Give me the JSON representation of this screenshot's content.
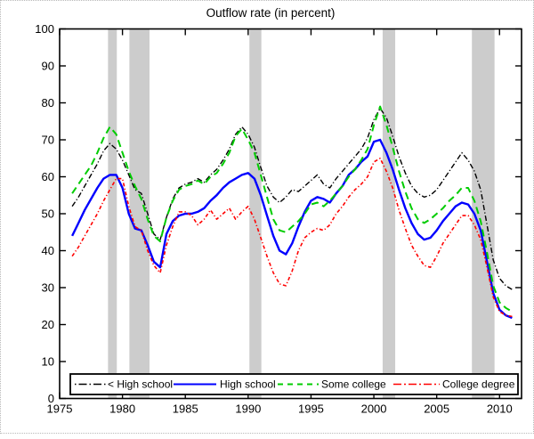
{
  "figure": {
    "background": "#ffffff",
    "border_color": "#b8b8b8"
  },
  "chart_data": {
    "type": "line",
    "title": "Outflow rate (in percent)",
    "xlabel": "",
    "ylabel": "",
    "grid": false,
    "legend_position": "bottom-inside-horizontal",
    "xlim": [
      1975,
      2011.75
    ],
    "ylim": [
      0,
      100
    ],
    "x_ticks": [
      1975,
      1980,
      1985,
      1990,
      1995,
      2000,
      2005,
      2010
    ],
    "y_ticks": [
      0,
      10,
      20,
      30,
      40,
      50,
      60,
      70,
      80,
      90,
      100
    ],
    "recession_band_color": "#cccccc",
    "recession_bands": [
      [
        1978.85,
        1979.55
      ],
      [
        1980.55,
        1982.15
      ],
      [
        1990.1,
        1991.05
      ],
      [
        2000.7,
        2001.7
      ],
      [
        2007.8,
        2009.6
      ]
    ],
    "x": [
      1976,
      1976.5,
      1977,
      1977.5,
      1978,
      1978.5,
      1979,
      1979.5,
      1980,
      1980.5,
      1981,
      1981.5,
      1982,
      1982.5,
      1983,
      1983.5,
      1984,
      1984.5,
      1985,
      1985.5,
      1986,
      1986.5,
      1987,
      1987.5,
      1988,
      1988.5,
      1989,
      1989.5,
      1990,
      1990.5,
      1991,
      1991.5,
      1992,
      1992.5,
      1993,
      1993.5,
      1994,
      1994.5,
      1995,
      1995.5,
      1996,
      1996.5,
      1997,
      1997.5,
      1998,
      1998.5,
      1999,
      1999.5,
      2000,
      2000.5,
      2001,
      2001.5,
      2002,
      2002.5,
      2003,
      2003.5,
      2004,
      2004.5,
      2005,
      2005.5,
      2006,
      2006.5,
      2007,
      2007.5,
      2008,
      2008.5,
      2009,
      2009.5,
      2010,
      2010.5,
      2011
    ],
    "series": [
      {
        "name": "< High school",
        "color": "#000000",
        "style": "dashdot",
        "width": 1.4,
        "values": [
          52,
          54.5,
          57.5,
          60.5,
          63.5,
          67,
          69,
          67.5,
          64.5,
          60.5,
          56.5,
          55.5,
          50,
          44.5,
          43,
          49,
          54,
          57,
          58,
          58.5,
          59.5,
          58.5,
          60.5,
          62,
          64.5,
          67.5,
          71.5,
          73.5,
          71.5,
          68,
          62.5,
          57.5,
          54.5,
          53,
          54.5,
          56.5,
          56,
          57.5,
          59,
          60.5,
          58,
          57,
          59.5,
          61.5,
          63.5,
          65.5,
          67.5,
          70.5,
          75.5,
          78.5,
          76,
          71,
          65.5,
          61,
          57.5,
          55.5,
          54.5,
          55,
          56.5,
          59,
          61.5,
          64,
          66.5,
          64.5,
          61.5,
          56.5,
          47,
          37.5,
          32.5,
          30.5,
          29.5
        ]
      },
      {
        "name": "High school",
        "color": "#0000ff",
        "style": "solid",
        "width": 2.4,
        "values": [
          44,
          47.5,
          51,
          54,
          57,
          59.5,
          60.5,
          60.5,
          57,
          50,
          46,
          45.5,
          41.5,
          37,
          35.5,
          44.5,
          48,
          49.5,
          50,
          50,
          50.5,
          51.5,
          53.5,
          55,
          57,
          58.5,
          59.5,
          60.5,
          61,
          59.5,
          55,
          49.5,
          44,
          40,
          39,
          42,
          46.5,
          50.5,
          53.5,
          54.5,
          54,
          53,
          55.5,
          57.5,
          60.5,
          62,
          64,
          65.5,
          69.5,
          70,
          66.5,
          62,
          56.5,
          51.5,
          47.5,
          44.5,
          43,
          43.5,
          45.5,
          48,
          50,
          52,
          53,
          52.5,
          50,
          45.5,
          37,
          28.5,
          24,
          22.5,
          21.8
        ]
      },
      {
        "name": "Some college",
        "color": "#00cc00",
        "style": "dashed",
        "width": 2,
        "values": [
          55.5,
          58,
          60.5,
          63,
          66.5,
          70.5,
          73.5,
          71.5,
          66.5,
          61.5,
          57.5,
          54,
          48.5,
          44,
          42.5,
          49,
          53.5,
          56.5,
          57.5,
          58,
          59,
          58,
          60,
          61,
          63.5,
          66.5,
          71,
          73,
          70,
          66.5,
          60.5,
          54.5,
          48.5,
          45.5,
          45,
          46.5,
          48,
          50,
          52.5,
          53,
          52,
          53.5,
          55.5,
          57.5,
          60,
          62,
          64.5,
          67.5,
          74,
          79,
          74,
          68,
          61.5,
          56,
          51.5,
          48.5,
          47.5,
          48.5,
          50,
          51.5,
          53.5,
          55,
          57,
          57,
          53.5,
          48,
          39.5,
          30.5,
          26,
          24.5,
          23.5
        ]
      },
      {
        "name": "College degree",
        "color": "#ff0000",
        "style": "dashdot-fine",
        "width": 1.6,
        "values": [
          38.5,
          41,
          44,
          47,
          50,
          53.5,
          56.5,
          59.5,
          59.5,
          52,
          46.5,
          45.5,
          40,
          36,
          34,
          41.5,
          46.5,
          50.5,
          50.5,
          49.5,
          47,
          48.5,
          51,
          48.5,
          50,
          51.5,
          48.5,
          50.5,
          52,
          48.5,
          43.5,
          38.5,
          34,
          31,
          30.5,
          34.5,
          40,
          43.5,
          45,
          46,
          45.5,
          47,
          50,
          52,
          54.5,
          56.5,
          58,
          60,
          64,
          65,
          61.5,
          57,
          51,
          46,
          41.5,
          38.5,
          36,
          35.5,
          38.5,
          42,
          44.5,
          47,
          49.5,
          49.5,
          47,
          43,
          35.5,
          27.5,
          23.5,
          22.5,
          22.2
        ]
      }
    ]
  }
}
